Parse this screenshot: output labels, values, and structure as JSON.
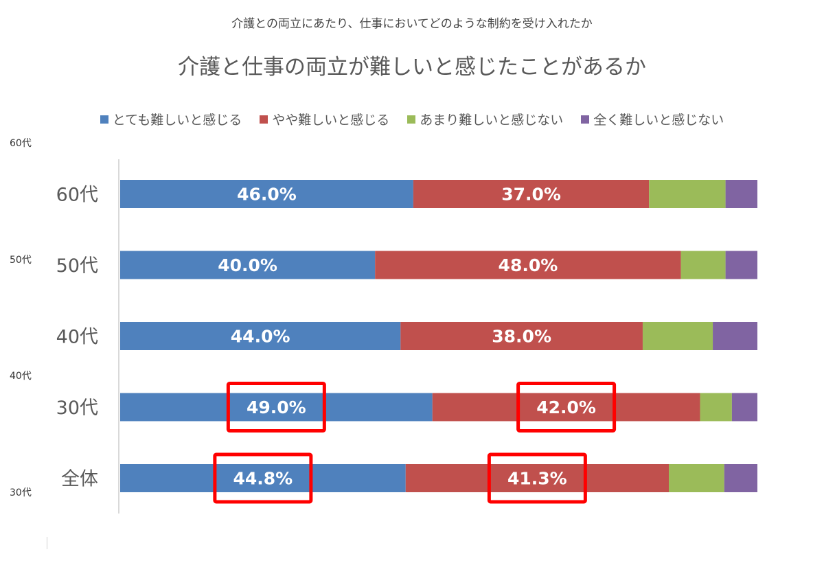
{
  "top_caption": "介護との両立にあたり、仕事においてどのような制約を受け入れたか",
  "side_labels": [
    "60代",
    "50代",
    "40代",
    "30代"
  ],
  "chart_data": {
    "type": "bar",
    "orientation": "horizontal",
    "stacked": true,
    "percent_stacked": true,
    "title": "介護と仕事の両立が難しいと感じたことがあるか",
    "categories": [
      "60代",
      "50代",
      "40代",
      "30代",
      "全体"
    ],
    "series": [
      {
        "name": "とても難しいと感じる",
        "color": "#4F81BD",
        "values": [
          46.0,
          40.0,
          44.0,
          49.0,
          44.8
        ],
        "labels": [
          "46.0%",
          "40.0%",
          "44.0%",
          "49.0%",
          "44.8%"
        ]
      },
      {
        "name": "やや難しいと感じる",
        "color": "#C0504D",
        "values": [
          37.0,
          48.0,
          38.0,
          42.0,
          41.3
        ],
        "labels": [
          "37.0%",
          "48.0%",
          "38.0%",
          "42.0%",
          "41.3%"
        ]
      },
      {
        "name": "あまり難しいと感じない",
        "color": "#9BBB59",
        "values": [
          12.0,
          7.0,
          11.0,
          5.0,
          8.7
        ]
      },
      {
        "name": "全く難しいと感じない",
        "color": "#8064A2",
        "values": [
          5.0,
          5.0,
          7.0,
          4.0,
          5.2
        ]
      }
    ],
    "xlim": [
      0,
      100
    ],
    "grid": false,
    "legend_position": "top",
    "highlighted_labels": [
      {
        "category": "30代",
        "series": "とても難しいと感じる"
      },
      {
        "category": "30代",
        "series": "やや難しいと感じる"
      },
      {
        "category": "全体",
        "series": "とても難しいと感じる"
      },
      {
        "category": "全体",
        "series": "やや難しいと感じる"
      }
    ],
    "highlight_color": "#FF0000"
  }
}
